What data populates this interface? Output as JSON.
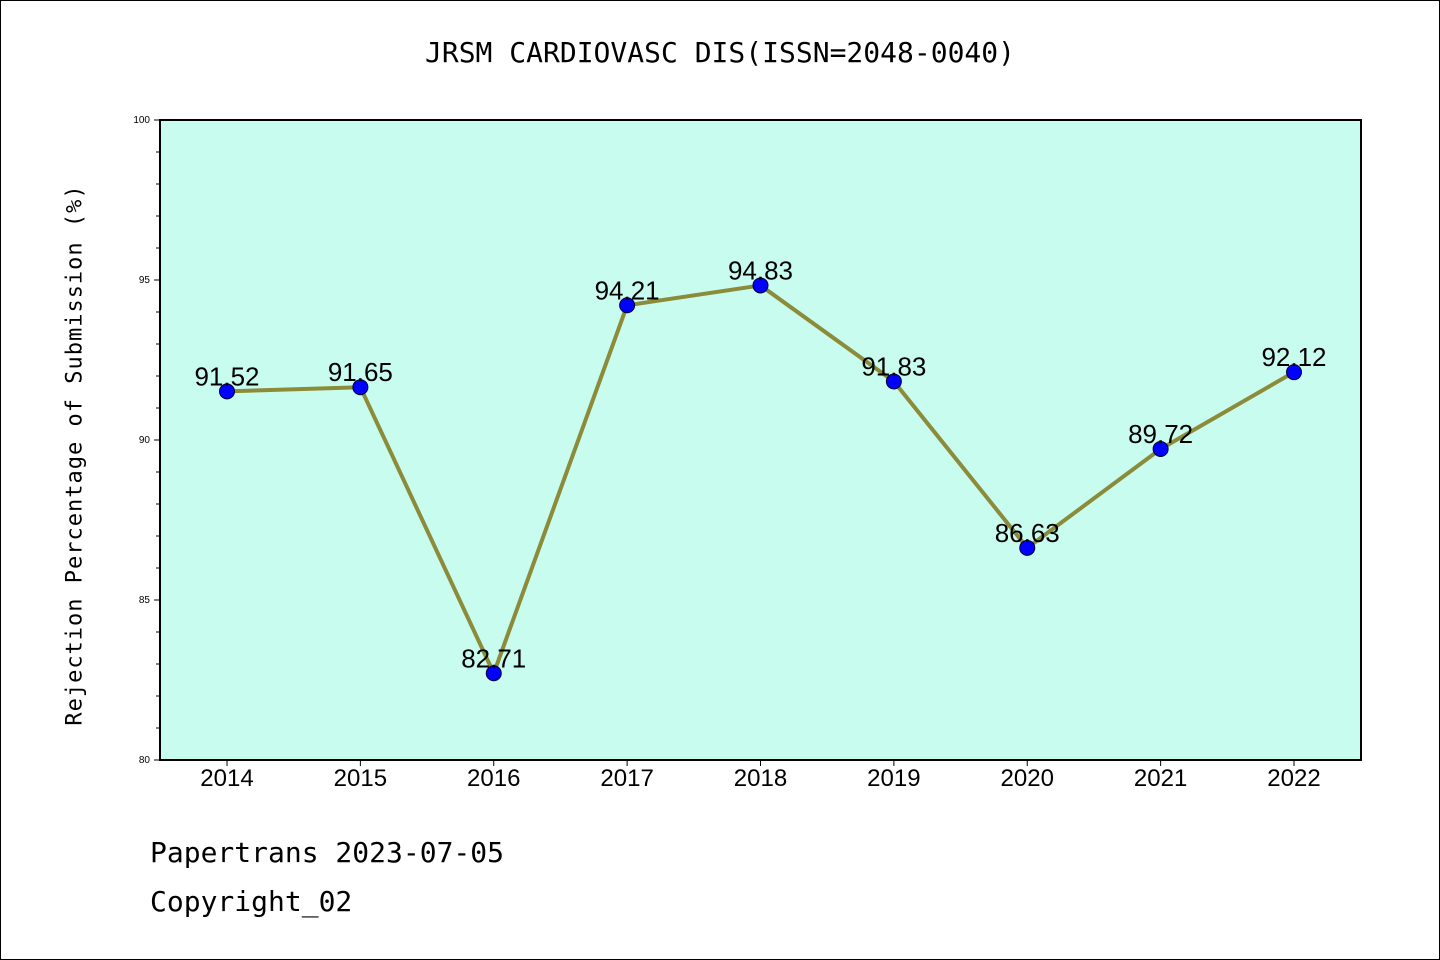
{
  "header": {
    "title": "JRSM CARDIOVASC DIS(ISSN=2048-0040)"
  },
  "footer": {
    "date_line": "Papertrans 2023-07-05",
    "copyright": "Copyright_02"
  },
  "chart_data": {
    "type": "line",
    "title": "JRSM CARDIOVASC DIS(ISSN=2048-0040)",
    "xlabel": "",
    "ylabel": "Rejection Percentage of Submission (%)",
    "categories": [
      "2014",
      "2015",
      "2016",
      "2017",
      "2018",
      "2019",
      "2020",
      "2021",
      "2022"
    ],
    "series": [
      {
        "values": [
          91.52,
          91.65,
          82.71,
          94.21,
          94.83,
          91.83,
          86.63,
          89.72,
          92.12
        ]
      }
    ],
    "data_labels": [
      "91.52",
      "91.65",
      "82.71",
      "94.21",
      "94.83",
      "91.83",
      "86.63",
      "89.72",
      "92.12"
    ],
    "ylim": [
      80,
      100
    ],
    "yticks": [
      "80",
      "85",
      "90",
      "95",
      "100"
    ],
    "grid": false,
    "colors": {
      "background": "#c8fcee",
      "line": "#8b8b3a",
      "marker": "#0000ff"
    }
  }
}
